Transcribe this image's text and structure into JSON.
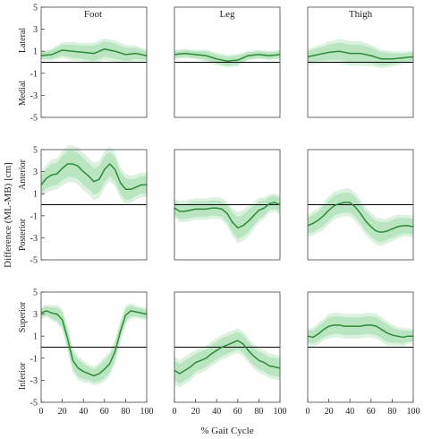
{
  "figure": {
    "ylabel": "Difference (ML-MB) [cm]",
    "xlabel": "% Gait Cycle",
    "columns": [
      "Foot",
      "Leg",
      "Thigh"
    ],
    "row_labels": [
      {
        "top": "Lateral",
        "bottom": "Medial"
      },
      {
        "top": "Anterior",
        "bottom": "Posterior"
      },
      {
        "top": "Superior",
        "bottom": "Inferior"
      }
    ]
  },
  "colors": {
    "line": "#2e8b3a",
    "band": "#b9e5c0",
    "band_outer": "#dcf2df",
    "zero": "#000000",
    "axis": "#444444"
  },
  "chart_data": {
    "type": "line",
    "xlim": [
      0,
      100
    ],
    "ylim": [
      -5,
      5
    ],
    "yticks": [
      -5,
      -3,
      -1,
      1,
      3,
      5
    ],
    "xticks": [
      0,
      20,
      40,
      60,
      80,
      100
    ],
    "grid": false,
    "panels": [
      {
        "row": 0,
        "col": 0,
        "x": [
          0,
          10,
          20,
          30,
          40,
          50,
          60,
          70,
          80,
          90,
          100
        ],
        "y": [
          0.6,
          0.7,
          1.1,
          1.0,
          0.9,
          0.8,
          1.2,
          1.0,
          0.7,
          0.8,
          0.6
        ],
        "sd": [
          0.3,
          0.4,
          0.5,
          0.6,
          0.6,
          0.7,
          0.7,
          0.7,
          0.6,
          0.5,
          0.4
        ]
      },
      {
        "row": 0,
        "col": 1,
        "x": [
          0,
          10,
          20,
          30,
          40,
          50,
          60,
          70,
          80,
          90,
          100
        ],
        "y": [
          0.7,
          0.8,
          0.7,
          0.6,
          0.3,
          0.1,
          0.2,
          0.6,
          0.7,
          0.6,
          0.7
        ],
        "sd": [
          0.3,
          0.3,
          0.3,
          0.4,
          0.4,
          0.4,
          0.4,
          0.3,
          0.3,
          0.3,
          0.3
        ]
      },
      {
        "row": 0,
        "col": 2,
        "x": [
          0,
          10,
          20,
          30,
          40,
          50,
          60,
          70,
          80,
          90,
          100
        ],
        "y": [
          0.5,
          0.7,
          0.9,
          1.0,
          0.8,
          0.8,
          0.6,
          0.3,
          0.3,
          0.4,
          0.5
        ],
        "sd": [
          0.5,
          0.6,
          0.7,
          0.8,
          0.8,
          0.8,
          0.7,
          0.6,
          0.5,
          0.4,
          0.4
        ]
      },
      {
        "row": 1,
        "col": 0,
        "x": [
          0,
          5,
          10,
          15,
          20,
          25,
          30,
          35,
          40,
          45,
          50,
          55,
          60,
          65,
          70,
          75,
          80,
          85,
          90,
          95,
          100
        ],
        "y": [
          1.8,
          2.4,
          2.7,
          2.8,
          3.3,
          3.7,
          3.7,
          3.5,
          3.0,
          2.6,
          2.1,
          2.3,
          3.2,
          3.7,
          3.2,
          2.0,
          1.4,
          1.4,
          1.6,
          1.8,
          1.8
        ],
        "sd": [
          0.8,
          0.9,
          1.0,
          1.0,
          1.1,
          1.2,
          1.2,
          1.2,
          1.2,
          1.2,
          1.2,
          1.2,
          1.2,
          1.1,
          1.1,
          1.0,
          1.0,
          0.9,
          0.8,
          0.8,
          0.8
        ]
      },
      {
        "row": 1,
        "col": 1,
        "x": [
          0,
          5,
          10,
          15,
          20,
          25,
          30,
          35,
          40,
          45,
          50,
          55,
          60,
          65,
          70,
          75,
          80,
          85,
          90,
          95,
          100
        ],
        "y": [
          -0.3,
          -0.6,
          -0.6,
          -0.5,
          -0.4,
          -0.4,
          -0.4,
          -0.3,
          -0.3,
          -0.4,
          -0.8,
          -1.6,
          -2.1,
          -1.9,
          -1.5,
          -1.0,
          -0.5,
          -0.3,
          0.1,
          0.2,
          0.0
        ],
        "sd": [
          0.6,
          0.7,
          0.7,
          0.7,
          0.7,
          0.7,
          0.7,
          0.7,
          0.7,
          0.7,
          0.8,
          0.9,
          1.0,
          1.0,
          1.0,
          0.9,
          0.8,
          0.7,
          0.6,
          0.6,
          0.6
        ]
      },
      {
        "row": 1,
        "col": 2,
        "x": [
          0,
          5,
          10,
          15,
          20,
          25,
          30,
          35,
          40,
          45,
          50,
          55,
          60,
          65,
          70,
          75,
          80,
          85,
          90,
          95,
          100
        ],
        "y": [
          -1.9,
          -1.7,
          -1.4,
          -1.0,
          -0.5,
          -0.1,
          0.1,
          0.2,
          0.2,
          -0.2,
          -0.8,
          -1.5,
          -2.0,
          -2.4,
          -2.5,
          -2.4,
          -2.2,
          -2.0,
          -1.9,
          -1.9,
          -2.0
        ],
        "sd": [
          0.7,
          0.8,
          0.8,
          0.9,
          0.9,
          0.9,
          0.9,
          0.9,
          0.9,
          0.9,
          0.9,
          0.9,
          0.9,
          0.9,
          0.9,
          0.8,
          0.8,
          0.8,
          0.7,
          0.7,
          0.7
        ]
      },
      {
        "row": 2,
        "col": 0,
        "x": [
          0,
          5,
          10,
          15,
          20,
          25,
          30,
          35,
          40,
          45,
          50,
          55,
          60,
          65,
          70,
          75,
          80,
          85,
          90,
          95,
          100
        ],
        "y": [
          3.1,
          3.3,
          3.1,
          3.0,
          2.5,
          0.8,
          -1.2,
          -1.9,
          -2.2,
          -2.4,
          -2.6,
          -2.4,
          -2.0,
          -1.5,
          -0.4,
          1.4,
          2.9,
          3.3,
          3.2,
          3.1,
          3.0
        ],
        "sd": [
          0.4,
          0.4,
          0.5,
          0.6,
          0.7,
          0.8,
          0.8,
          0.8,
          0.7,
          0.6,
          0.6,
          0.7,
          0.8,
          0.8,
          0.8,
          0.7,
          0.6,
          0.5,
          0.4,
          0.4,
          0.4
        ]
      },
      {
        "row": 2,
        "col": 1,
        "x": [
          0,
          5,
          10,
          15,
          20,
          25,
          30,
          35,
          40,
          45,
          50,
          55,
          60,
          65,
          70,
          75,
          80,
          85,
          90,
          95,
          100
        ],
        "y": [
          -2.1,
          -2.4,
          -2.1,
          -1.8,
          -1.4,
          -1.2,
          -1.0,
          -0.6,
          -0.3,
          0.0,
          0.2,
          0.4,
          0.6,
          0.3,
          -0.3,
          -0.8,
          -1.2,
          -1.4,
          -1.7,
          -1.8,
          -1.9
        ],
        "sd": [
          0.9,
          0.9,
          0.9,
          0.9,
          0.8,
          0.8,
          0.8,
          0.8,
          0.8,
          0.8,
          0.8,
          0.8,
          0.8,
          0.8,
          0.8,
          0.8,
          0.8,
          0.8,
          0.8,
          0.8,
          0.8
        ]
      },
      {
        "row": 2,
        "col": 2,
        "x": [
          0,
          5,
          10,
          15,
          20,
          25,
          30,
          35,
          40,
          45,
          50,
          55,
          60,
          65,
          70,
          75,
          80,
          85,
          90,
          95,
          100
        ],
        "y": [
          1.0,
          0.9,
          1.2,
          1.6,
          1.9,
          2.0,
          2.0,
          1.9,
          1.9,
          1.9,
          1.9,
          2.0,
          2.0,
          1.9,
          1.6,
          1.3,
          1.1,
          1.0,
          0.9,
          1.0,
          1.0
        ],
        "sd": [
          0.5,
          0.6,
          0.7,
          0.7,
          0.8,
          0.8,
          0.8,
          0.8,
          0.8,
          0.8,
          0.8,
          0.8,
          0.8,
          0.8,
          0.8,
          0.8,
          0.7,
          0.6,
          0.6,
          0.5,
          0.5
        ]
      }
    ]
  }
}
